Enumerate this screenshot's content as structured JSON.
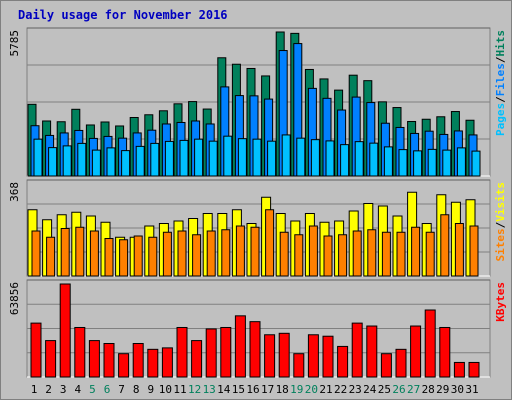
{
  "title": "Daily usage for November 2016",
  "colors": {
    "background": "#c0c0c0",
    "panel": "#c0c0c0",
    "hits": "#00805c",
    "files": "#0080ff",
    "pages": "#00c0ff",
    "visits": "#ffff00",
    "sites": "#ff8000",
    "kbytes": "#ff0000",
    "title": "#0000c0",
    "weekend_tick": "#00805c",
    "weekday_tick": "#000000",
    "separator": "#000000"
  },
  "chart_data": [
    {
      "type": "bar",
      "panel": "hits-files-pages",
      "ymax_label": "5785",
      "ylim": [
        0,
        5785
      ],
      "categories": [
        "1",
        "2",
        "3",
        "4",
        "5",
        "6",
        "7",
        "8",
        "9",
        "10",
        "11",
        "12",
        "13",
        "14",
        "15",
        "16",
        "17",
        "18",
        "19",
        "20",
        "21",
        "22",
        "23",
        "24",
        "25",
        "26",
        "27",
        "28",
        "29",
        "30",
        "31"
      ],
      "legend": [
        "Pages",
        "/",
        "Files",
        "/",
        "Hits"
      ],
      "series": [
        {
          "name": "Hits",
          "color_key": "hits",
          "values": [
            2880,
            2210,
            2180,
            2680,
            2050,
            2170,
            2010,
            2350,
            2460,
            2620,
            2900,
            2990,
            2690,
            4750,
            4490,
            4320,
            4020,
            5785,
            5730,
            4280,
            3900,
            3450,
            4050,
            3830,
            2980,
            2750,
            2190,
            2280,
            2380,
            2590,
            2240
          ]
        },
        {
          "name": "Files",
          "color_key": "files",
          "values": [
            2020,
            1630,
            1730,
            1830,
            1510,
            1590,
            1520,
            1730,
            1840,
            2090,
            2150,
            2210,
            2090,
            3580,
            3230,
            3220,
            3090,
            5040,
            5320,
            3520,
            3120,
            2650,
            3170,
            2950,
            2120,
            1950,
            1710,
            1800,
            1670,
            1810,
            1650
          ]
        },
        {
          "name": "Pages",
          "color_key": "pages",
          "values": [
            1480,
            1140,
            1210,
            1310,
            1040,
            1130,
            1020,
            1190,
            1310,
            1390,
            1430,
            1480,
            1400,
            1600,
            1500,
            1480,
            1400,
            1650,
            1520,
            1460,
            1410,
            1260,
            1380,
            1320,
            1170,
            1060,
            1010,
            1070,
            1040,
            1130,
            1000
          ]
        }
      ]
    },
    {
      "type": "bar",
      "panel": "visits-sites",
      "ymax_label": "368",
      "ylim": [
        0,
        368
      ],
      "categories": [
        "1",
        "2",
        "3",
        "4",
        "5",
        "6",
        "7",
        "8",
        "9",
        "10",
        "11",
        "12",
        "13",
        "14",
        "15",
        "16",
        "17",
        "18",
        "19",
        "20",
        "21",
        "22",
        "23",
        "24",
        "25",
        "26",
        "27",
        "28",
        "29",
        "30",
        "31"
      ],
      "legend": [
        "Sites",
        "/",
        "Visits"
      ],
      "series": [
        {
          "name": "Visits",
          "color_key": "visits",
          "values": [
            265,
            225,
            245,
            255,
            240,
            215,
            155,
            155,
            200,
            210,
            220,
            230,
            250,
            250,
            265,
            210,
            315,
            250,
            220,
            250,
            215,
            220,
            260,
            290,
            280,
            240,
            335,
            210,
            325,
            295,
            305
          ]
        },
        {
          "name": "Sites",
          "color_key": "sites",
          "values": [
            180,
            155,
            190,
            195,
            180,
            150,
            145,
            160,
            155,
            175,
            180,
            165,
            180,
            185,
            200,
            195,
            265,
            175,
            165,
            200,
            160,
            165,
            180,
            185,
            175,
            175,
            195,
            175,
            245,
            210,
            200
          ]
        }
      ]
    },
    {
      "type": "bar",
      "panel": "kbytes",
      "ymax_label": "63856",
      "ylim": [
        0,
        63856
      ],
      "categories": [
        "1",
        "2",
        "3",
        "4",
        "5",
        "6",
        "7",
        "8",
        "9",
        "10",
        "11",
        "12",
        "13",
        "14",
        "15",
        "16",
        "17",
        "18",
        "19",
        "20",
        "21",
        "22",
        "23",
        "24",
        "25",
        "26",
        "27",
        "28",
        "29",
        "30",
        "31"
      ],
      "legend": [
        "KBytes"
      ],
      "series": [
        {
          "name": "KBytes",
          "color_key": "kbytes",
          "values": [
            37000,
            25000,
            63856,
            34000,
            25000,
            23000,
            16000,
            23000,
            19000,
            20000,
            34000,
            25000,
            33000,
            34000,
            42000,
            38000,
            29000,
            30000,
            16000,
            29000,
            28000,
            21000,
            37000,
            35000,
            16000,
            19000,
            35000,
            46000,
            34000,
            10000,
            10000
          ]
        }
      ]
    }
  ],
  "x_ticks": [
    {
      "label": "1",
      "weekend": false
    },
    {
      "label": "2",
      "weekend": false
    },
    {
      "label": "3",
      "weekend": false
    },
    {
      "label": "4",
      "weekend": false
    },
    {
      "label": "5",
      "weekend": true
    },
    {
      "label": "6",
      "weekend": true
    },
    {
      "label": "7",
      "weekend": false
    },
    {
      "label": "8",
      "weekend": false
    },
    {
      "label": "9",
      "weekend": false
    },
    {
      "label": "10",
      "weekend": false
    },
    {
      "label": "11",
      "weekend": false
    },
    {
      "label": "12",
      "weekend": true
    },
    {
      "label": "13",
      "weekend": true
    },
    {
      "label": "14",
      "weekend": false
    },
    {
      "label": "15",
      "weekend": false
    },
    {
      "label": "16",
      "weekend": false
    },
    {
      "label": "17",
      "weekend": false
    },
    {
      "label": "18",
      "weekend": false
    },
    {
      "label": "19",
      "weekend": true
    },
    {
      "label": "20",
      "weekend": true
    },
    {
      "label": "21",
      "weekend": false
    },
    {
      "label": "22",
      "weekend": false
    },
    {
      "label": "23",
      "weekend": false
    },
    {
      "label": "24",
      "weekend": false
    },
    {
      "label": "25",
      "weekend": false
    },
    {
      "label": "26",
      "weekend": true
    },
    {
      "label": "27",
      "weekend": true
    },
    {
      "label": "28",
      "weekend": false
    },
    {
      "label": "29",
      "weekend": false
    },
    {
      "label": "30",
      "weekend": false
    },
    {
      "label": "31",
      "weekend": false
    }
  ]
}
